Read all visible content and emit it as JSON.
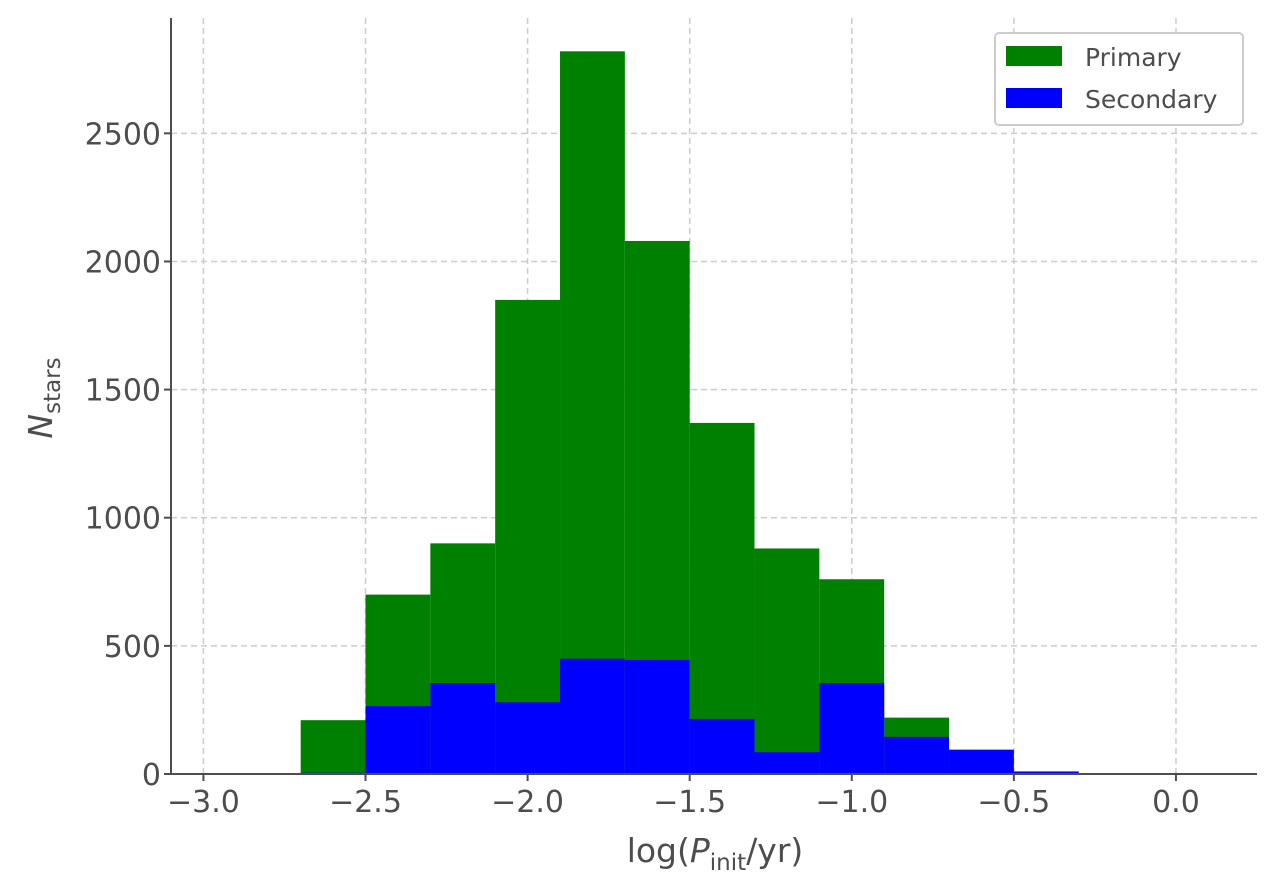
{
  "chart_data": {
    "type": "bar",
    "subtype": "overlaid-histogram",
    "title": "",
    "xlabel_parts": {
      "pre": "log(",
      "var": "P",
      "sub": "init",
      "post": "/yr)"
    },
    "ylabel_parts": {
      "var": "N",
      "sub": "stars"
    },
    "xlim": [
      -3.1,
      0.25
    ],
    "ylim": [
      0,
      2950
    ],
    "xticks": [
      -3.0,
      -2.5,
      -2.0,
      -1.5,
      -1.0,
      -0.5,
      0.0
    ],
    "xtick_labels": [
      "−3.0",
      "−2.5",
      "−2.0",
      "−1.5",
      "−1.0",
      "−0.5",
      "0.0"
    ],
    "yticks": [
      0,
      500,
      1000,
      1500,
      2000,
      2500
    ],
    "ytick_labels": [
      "0",
      "500",
      "1000",
      "1500",
      "2000",
      "2500"
    ],
    "grid": true,
    "legend_position": "top-right",
    "bin_edges": [
      -2.7,
      -2.5,
      -2.3,
      -2.1,
      -1.9,
      -1.7,
      -1.5,
      -1.3,
      -1.1,
      -0.9,
      -0.7,
      -0.5,
      -0.3
    ],
    "series": [
      {
        "name": "Primary",
        "color": "#008000",
        "values": [
          210,
          700,
          900,
          1850,
          2820,
          2080,
          1370,
          880,
          760,
          220,
          0,
          0
        ]
      },
      {
        "name": "Secondary",
        "color": "#0000ff",
        "values": [
          5,
          265,
          355,
          280,
          450,
          445,
          215,
          85,
          355,
          145,
          95,
          10
        ]
      }
    ]
  }
}
